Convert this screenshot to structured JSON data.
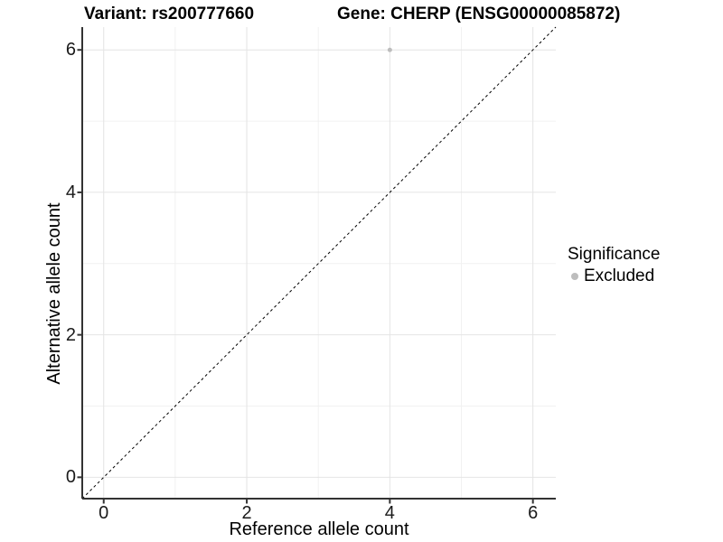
{
  "chart_data": {
    "type": "scatter",
    "title_left": "Variant: rs200777660",
    "title_right": "Gene: CHERP (ENSG00000085872)",
    "xlabel": "Reference allele count",
    "ylabel": "Alternative allele count",
    "xlim": [
      -0.3,
      6.32
    ],
    "ylim": [
      -0.3,
      6.32
    ],
    "x_ticks": [
      0,
      2,
      4,
      6
    ],
    "y_ticks": [
      0,
      2,
      4,
      6
    ],
    "minor_gridlines": [
      1,
      3,
      5
    ],
    "grid": true,
    "points": [
      {
        "x": 4,
        "y": 6,
        "series": "Excluded"
      }
    ],
    "reference_line": {
      "type": "identity",
      "style": "dashed",
      "color": "#000000"
    },
    "legend": {
      "title": "Significance",
      "position": "right",
      "items": [
        {
          "label": "Excluded",
          "color": "#bdbdbd"
        }
      ]
    },
    "colors": {
      "point": "#bdbdbd",
      "grid_major": "#e4e4e4",
      "grid_minor": "#f1f1f1",
      "axis": "#333333",
      "background": "#ffffff"
    }
  }
}
